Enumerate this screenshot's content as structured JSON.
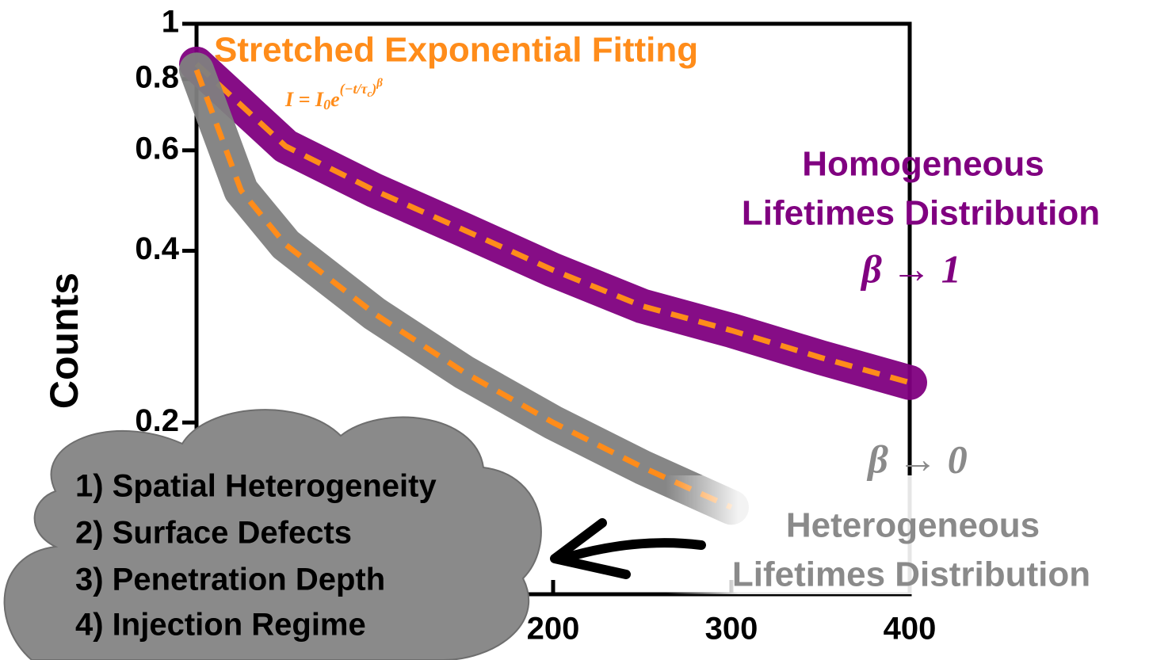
{
  "chart_data": {
    "type": "line",
    "title": "Stretched Exponential Fitting",
    "formula": [
      "I = I",
      "0",
      "e",
      "(−t/τ",
      "c",
      ")",
      "β"
    ],
    "ylabel": "Counts",
    "log_y": true,
    "xlim": [
      0,
      400
    ],
    "xticks": [
      200,
      300,
      400
    ],
    "ylim": [
      0.1,
      1
    ],
    "yticks": [
      0.2,
      0.4,
      0.6,
      0.8,
      1
    ],
    "fit_color": "#ff8c1a",
    "series": [
      {
        "color": "#800080",
        "x": [
          0,
          50,
          100,
          150,
          200,
          250,
          300,
          350,
          400
        ],
        "values": [
          0.85,
          0.61,
          0.51,
          0.435,
          0.37,
          0.32,
          0.29,
          0.26,
          0.235
        ]
      },
      {
        "color": "#808080",
        "x": [
          0,
          25,
          50,
          100,
          150,
          200,
          250,
          300
        ],
        "values": [
          0.83,
          0.51,
          0.41,
          0.31,
          0.245,
          0.2,
          0.167,
          0.142
        ]
      }
    ],
    "annotations": {
      "homogeneous": [
        "Homogeneous",
        "Lifetimes Distribution",
        "β → 1"
      ],
      "heterogeneous": [
        "β  → 0",
        "Heterogeneous",
        "Lifetimes Distribution"
      ],
      "causes": [
        "1)  Spatial Heterogeneity",
        "2)  Surface Defects",
        "3)  Penetration Depth",
        "4)  Injection Regime"
      ]
    }
  }
}
